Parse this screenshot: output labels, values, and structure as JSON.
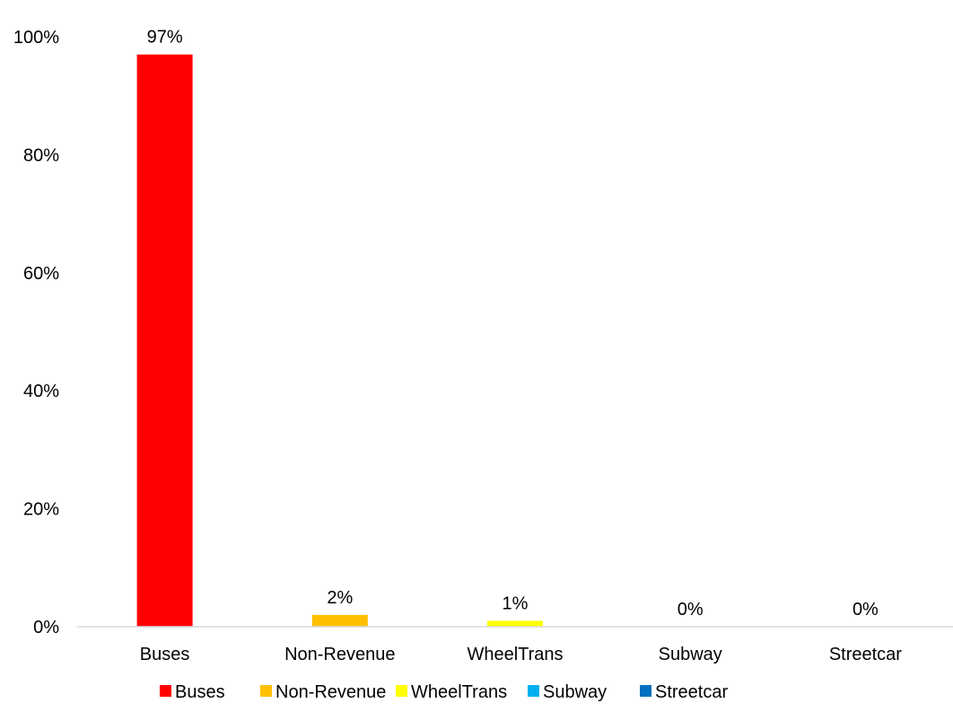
{
  "chart_data": {
    "type": "bar",
    "categories": [
      "Buses",
      "Non-Revenue",
      "WheelTrans",
      "Subway",
      "Streetcar"
    ],
    "values": [
      97,
      2,
      1,
      0,
      0
    ],
    "data_labels": [
      "97%",
      "2%",
      "1%",
      "0%",
      "0%"
    ],
    "colors": [
      "#ff0000",
      "#ffc000",
      "#ffff00",
      "#00b0f0",
      "#0070c0"
    ],
    "ylim": [
      0,
      100
    ],
    "yticks": [
      0,
      20,
      40,
      60,
      80,
      100
    ],
    "ytick_labels": [
      "0%",
      "20%",
      "40%",
      "60%",
      "80%",
      "100%"
    ],
    "grid": false,
    "legend": {
      "position": "bottom",
      "entries": [
        "Buses",
        "Non-Revenue",
        "WheelTrans",
        "Subway",
        "Streetcar"
      ]
    }
  }
}
